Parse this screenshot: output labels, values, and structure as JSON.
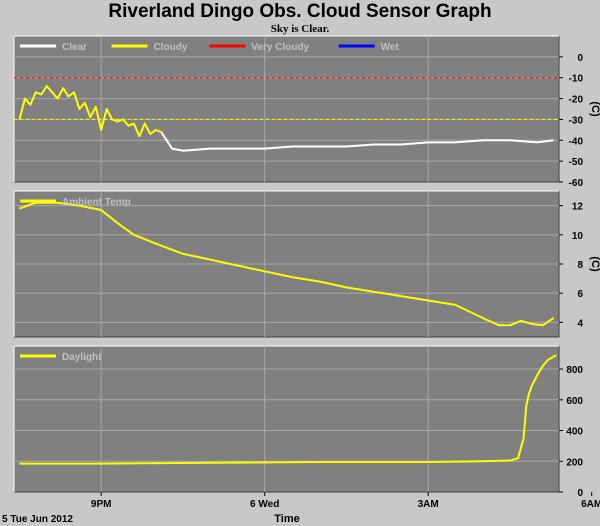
{
  "title": "Riverland Dingo Obs. Cloud Sensor Graph",
  "subtitle": "Sky is Clear.",
  "x_axis": {
    "label": "Time",
    "date_label": "5 Tue Jun 2012",
    "tick_labels": [
      "9PM",
      "6 Wed",
      "3AM",
      "6AM"
    ]
  },
  "colors": {
    "background": "#c8c8c8",
    "plot_bg": "#808080",
    "grid": "#a8a8a8",
    "clear": "#ffffff",
    "cloudy": "#ffff00",
    "very_cloudy": "#ff0000",
    "wet": "#0000ff"
  },
  "chart_data": [
    {
      "type": "line",
      "ylabel": "(C)",
      "ylim": [
        -60,
        10
      ],
      "yticks": [
        -60,
        -50,
        -40,
        -30,
        -20,
        -10,
        0
      ],
      "xlim": [
        19.4,
        29.4
      ],
      "xticks": [
        21,
        24,
        27,
        30
      ],
      "legend": [
        "Clear",
        "Cloudy",
        "Very Cloudy",
        "Wet"
      ],
      "legend_placement": "top-left",
      "thresholds": [
        {
          "name": "Very Cloudy",
          "value": -10
        },
        {
          "name": "Cloudy",
          "value": -30
        }
      ],
      "series": [
        {
          "name": "Clear",
          "color": "#ffffff",
          "x": [
            22.1,
            22.3,
            22.5,
            23.0,
            23.5,
            24.0,
            24.5,
            25.0,
            25.5,
            26.0,
            26.5,
            27.0,
            27.5,
            28.0,
            28.5,
            29.0,
            29.3
          ],
          "y": [
            -36,
            -44,
            -45,
            -44,
            -44,
            -44,
            -43,
            -43,
            -43,
            -42,
            -42,
            -41,
            -41,
            -40,
            -40,
            -41,
            -40
          ]
        },
        {
          "name": "Cloudy",
          "color": "#ffff00",
          "x": [
            19.5,
            19.6,
            19.7,
            19.8,
            19.9,
            20.0,
            20.1,
            20.2,
            20.3,
            20.4,
            20.5,
            20.6,
            20.7,
            20.8,
            20.9,
            21.0,
            21.1,
            21.2,
            21.3,
            21.4,
            21.5,
            21.6,
            21.7,
            21.8,
            21.9,
            22.0,
            22.1
          ],
          "y": [
            -30,
            -20,
            -23,
            -17,
            -18,
            -14,
            -17,
            -20,
            -15,
            -19,
            -17,
            -25,
            -22,
            -29,
            -24,
            -35,
            -25,
            -30,
            -31,
            -30,
            -33,
            -32,
            -38,
            -32,
            -37,
            -35,
            -36
          ]
        }
      ]
    },
    {
      "type": "line",
      "ylabel": "(C)",
      "ylim": [
        3,
        13
      ],
      "yticks": [
        4,
        6,
        8,
        10,
        12
      ],
      "xlim": [
        19.4,
        29.4
      ],
      "xticks": [
        21,
        24,
        27,
        30
      ],
      "legend": [
        "Ambient Temp"
      ],
      "legend_placement": "top-left",
      "series": [
        {
          "name": "Ambient Temp",
          "color": "#ffff00",
          "x": [
            19.5,
            19.8,
            20.2,
            20.6,
            21.0,
            21.3,
            21.6,
            22.0,
            22.5,
            23.0,
            23.5,
            24.0,
            24.5,
            25.0,
            25.5,
            26.0,
            26.5,
            27.0,
            27.5,
            28.0,
            28.3,
            28.5,
            28.7,
            28.9,
            29.1,
            29.3
          ],
          "y": [
            11.8,
            12.2,
            12.2,
            12.0,
            11.7,
            10.8,
            10.0,
            9.4,
            8.7,
            8.3,
            7.9,
            7.5,
            7.1,
            6.8,
            6.4,
            6.1,
            5.8,
            5.5,
            5.2,
            4.3,
            3.8,
            3.8,
            4.1,
            3.9,
            3.8,
            4.3
          ]
        }
      ]
    },
    {
      "type": "line",
      "ylabel": "",
      "ylim": [
        0,
        950
      ],
      "yticks": [
        0,
        200,
        400,
        600,
        800
      ],
      "xlim": [
        19.4,
        29.4
      ],
      "xticks": [
        21,
        24,
        27,
        30
      ],
      "legend": [
        "Daylight"
      ],
      "legend_placement": "top-left",
      "series": [
        {
          "name": "Daylight",
          "color": "#ffff00",
          "x": [
            19.5,
            21.0,
            23.0,
            25.0,
            27.0,
            28.0,
            28.5,
            28.65,
            28.75,
            28.8,
            28.85,
            28.9,
            29.0,
            29.1,
            29.2,
            29.35
          ],
          "y": [
            185,
            185,
            190,
            195,
            195,
            200,
            205,
            220,
            350,
            560,
            640,
            690,
            760,
            820,
            860,
            890
          ]
        }
      ]
    }
  ]
}
